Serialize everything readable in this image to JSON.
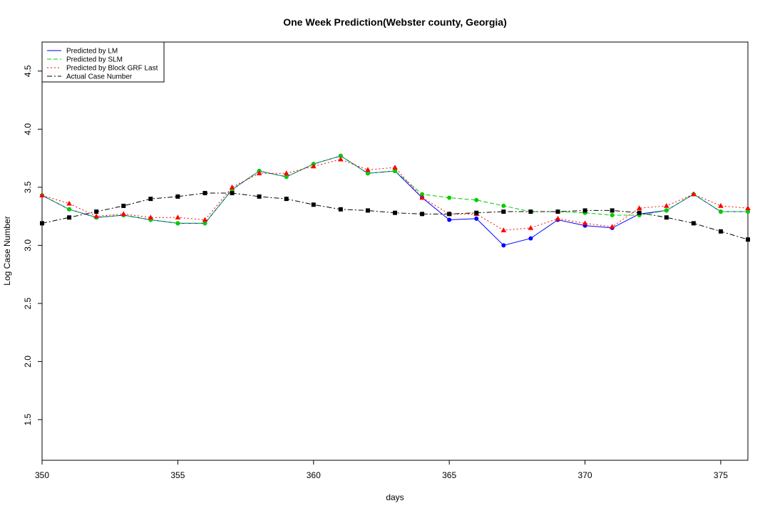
{
  "chart_data": {
    "type": "line",
    "title": "One Week Prediction(Webster county, Georgia)",
    "xlabel": "days",
    "ylabel": "Log Case Number",
    "xlim": [
      350,
      376
    ],
    "ylim": [
      1.15,
      4.75
    ],
    "x_ticks": [
      350,
      355,
      360,
      365,
      370,
      375
    ],
    "x_tick_labels": [
      "350",
      "355",
      "360",
      "365",
      "370",
      "375"
    ],
    "y_ticks": [
      1.5,
      2.0,
      2.5,
      3.0,
      3.5,
      4.0,
      4.5
    ],
    "y_tick_labels": [
      "1.5",
      "2.0",
      "2.5",
      "3.0",
      "3.5",
      "4.0",
      "4.5"
    ],
    "grid": false,
    "legend_position": "top-left",
    "x": [
      350,
      351,
      352,
      353,
      354,
      355,
      356,
      357,
      358,
      359,
      360,
      361,
      362,
      363,
      364,
      365,
      366,
      367,
      368,
      369,
      370,
      371,
      372,
      373,
      374,
      375,
      376
    ],
    "series": [
      {
        "name": "Predicted by LM",
        "color": "#0000ff",
        "dash": "solid",
        "marker": "circle",
        "values": [
          3.43,
          3.31,
          3.24,
          3.26,
          3.22,
          3.19,
          3.19,
          3.48,
          3.64,
          3.59,
          3.7,
          3.77,
          3.62,
          3.64,
          3.41,
          3.22,
          3.23,
          3.0,
          3.06,
          3.22,
          3.17,
          3.15,
          3.27,
          3.3,
          3.44,
          3.29,
          3.29
        ]
      },
      {
        "name": "Predicted by SLM",
        "color": "#00cc00",
        "dash": "dashed",
        "marker": "circle",
        "values": [
          3.43,
          3.31,
          3.24,
          3.26,
          3.22,
          3.19,
          3.19,
          3.48,
          3.64,
          3.59,
          3.7,
          3.77,
          3.62,
          3.64,
          3.44,
          3.41,
          3.39,
          3.34,
          3.29,
          3.29,
          3.28,
          3.26,
          3.26,
          3.3,
          3.44,
          3.29,
          3.29
        ]
      },
      {
        "name": "Predicted by Block GRF Last",
        "color": "#ff0000",
        "dash": "dotted",
        "marker": "triangle",
        "values": [
          3.43,
          3.36,
          3.25,
          3.27,
          3.24,
          3.24,
          3.22,
          3.5,
          3.62,
          3.62,
          3.68,
          3.74,
          3.65,
          3.67,
          3.41,
          3.27,
          3.27,
          3.13,
          3.15,
          3.23,
          3.19,
          3.16,
          3.32,
          3.34,
          3.44,
          3.34,
          3.32
        ]
      },
      {
        "name": "Actual Case Number",
        "color": "#000000",
        "dash": "dotdash",
        "marker": "square",
        "values": [
          3.19,
          3.24,
          3.29,
          3.34,
          3.4,
          3.42,
          3.45,
          3.45,
          3.42,
          3.4,
          3.35,
          3.31,
          3.3,
          3.28,
          3.27,
          3.27,
          3.28,
          3.29,
          3.29,
          3.29,
          3.3,
          3.3,
          3.28,
          3.24,
          3.19,
          3.12,
          3.05
        ]
      }
    ]
  }
}
